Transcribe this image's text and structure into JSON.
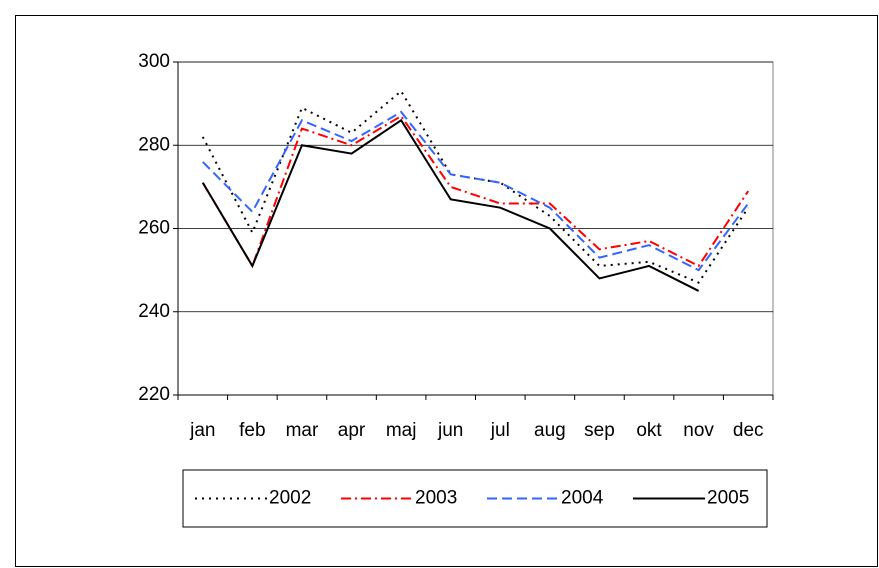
{
  "chart_data": {
    "type": "line",
    "categories": [
      "jan",
      "feb",
      "mar",
      "apr",
      "maj",
      "jun",
      "jul",
      "aug",
      "sep",
      "okt",
      "nov",
      "dec"
    ],
    "series": [
      {
        "name": "2002",
        "color": "#000000",
        "dash": "dot",
        "values": [
          282,
          259,
          289,
          283,
          293,
          273,
          271,
          263,
          251,
          252,
          247,
          265
        ]
      },
      {
        "name": "2003",
        "color": "#ff0000",
        "dash": "dashdot",
        "values": [
          271,
          251,
          284,
          280,
          287,
          270,
          266,
          266,
          255,
          257,
          251,
          269
        ]
      },
      {
        "name": "2004",
        "color": "#3366ff",
        "dash": "dash",
        "values": [
          276,
          264,
          286,
          281,
          288,
          273,
          271,
          265,
          253,
          256,
          250,
          266
        ]
      },
      {
        "name": "2005",
        "color": "#000000",
        "dash": "solid",
        "values": [
          271,
          251,
          280,
          278,
          286,
          267,
          265,
          260,
          248,
          251,
          245,
          null
        ]
      }
    ],
    "ylim": [
      220,
      300
    ],
    "yticks": [
      220,
      240,
      260,
      280,
      300
    ],
    "grid": true,
    "legend": "bottom"
  }
}
